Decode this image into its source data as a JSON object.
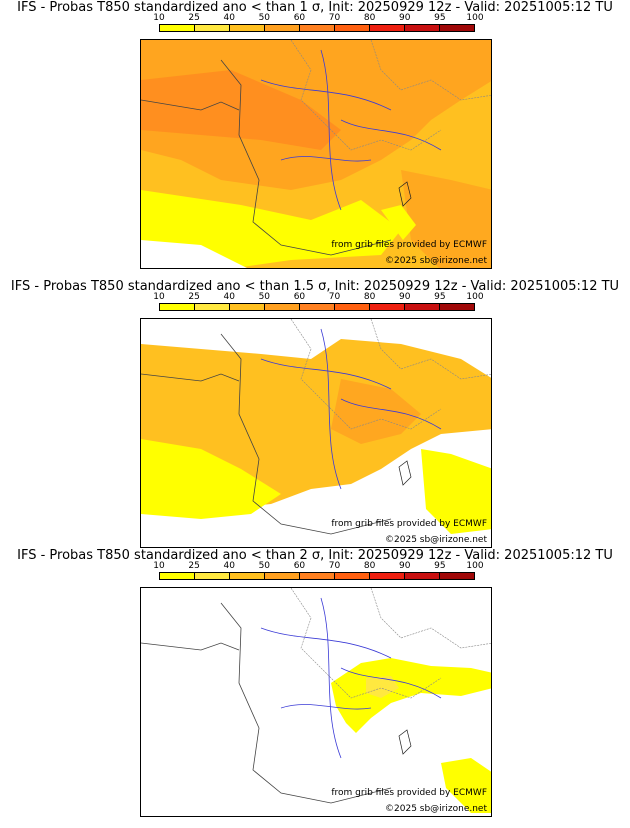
{
  "scale": {
    "ticks": [
      "10",
      "25",
      "40",
      "50",
      "60",
      "70",
      "80",
      "90",
      "95",
      "100"
    ],
    "colors": [
      "#ffff00",
      "#ffe840",
      "#ffc020",
      "#ffa020",
      "#ff8020",
      "#ff6010",
      "#ee2010",
      "#c81010",
      "#a00808",
      "#700000"
    ]
  },
  "panels": [
    {
      "title": "IFS - Probas T850  standardized ano < than 1 σ, Init: 20250929 12z - Valid: 20251005:12 TU",
      "credit_source": "from grib files provided by ECMWF",
      "credit_copyright": "©2025 sb@irizone.net"
    },
    {
      "title": "IFS - Probas T850  standardized ano < than 1.5 σ, Init: 20250929 12z - Valid: 20251005:12 TU",
      "credit_source": "from grib files provided by ECMWF",
      "credit_copyright": "©2025 sb@irizone.net"
    },
    {
      "title": "IFS - Probas T850  standardized ano < than 2 σ, Init: 20250929 12z - Valid: 20251005:12 TU",
      "credit_source": "from grib files provided by ECMWF",
      "credit_copyright": "©2025 sb@irizone.net"
    }
  ]
}
